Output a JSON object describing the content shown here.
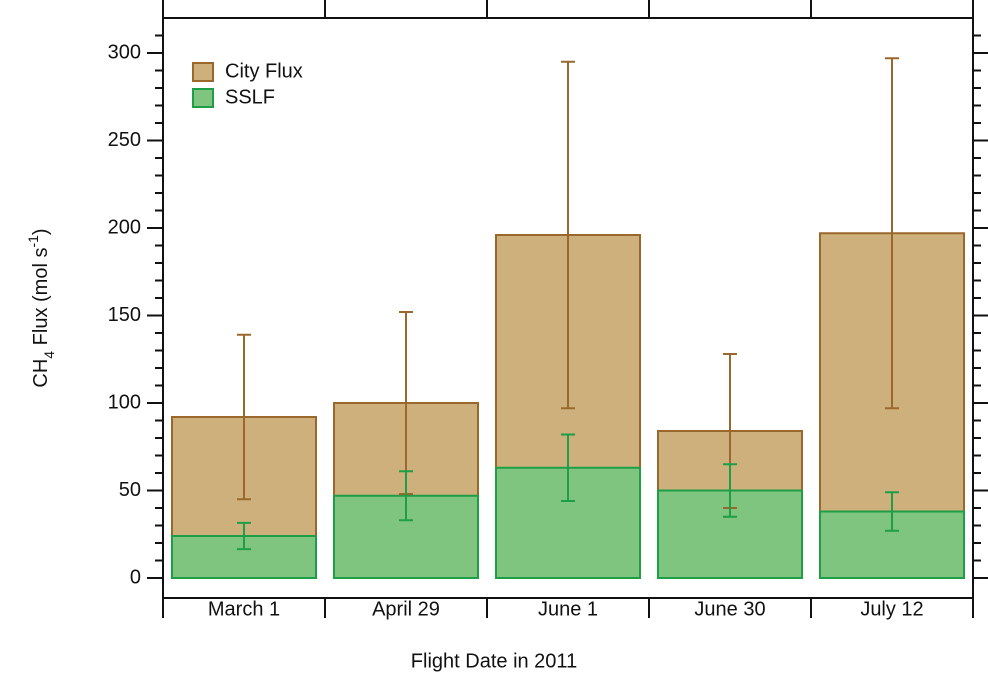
{
  "chart_data": {
    "type": "bar",
    "overlap": true,
    "x_label": "Flight Date in 2011",
    "y_label": [
      "CH",
      "4",
      " Flux (mol s",
      "-1",
      ")"
    ],
    "categories": [
      "March 1",
      "April 29",
      "June 1",
      "June 30",
      "July 12"
    ],
    "series": [
      {
        "name": "City Flux",
        "color": "#cdb07c",
        "edge": "#9a682c",
        "values": [
          92,
          100,
          196,
          84,
          197
        ],
        "error": [
          47,
          52,
          99,
          44,
          100
        ]
      },
      {
        "name": "SSLF",
        "color": "#80c57f",
        "edge": "#1e9e46",
        "values": [
          24,
          47,
          63,
          50,
          38
        ],
        "error": [
          7.5,
          14,
          19,
          15,
          11
        ]
      }
    ],
    "ylim": [
      0,
      320
    ],
    "yticks": [
      0,
      50,
      100,
      150,
      200,
      250,
      300
    ],
    "yminorticks": [
      10,
      20,
      30,
      40,
      60,
      70,
      80,
      90,
      110,
      120,
      130,
      140,
      160,
      170,
      180,
      190,
      210,
      220,
      230,
      240,
      260,
      270,
      280,
      290,
      310
    ],
    "legend": "top-left",
    "grid": false
  }
}
